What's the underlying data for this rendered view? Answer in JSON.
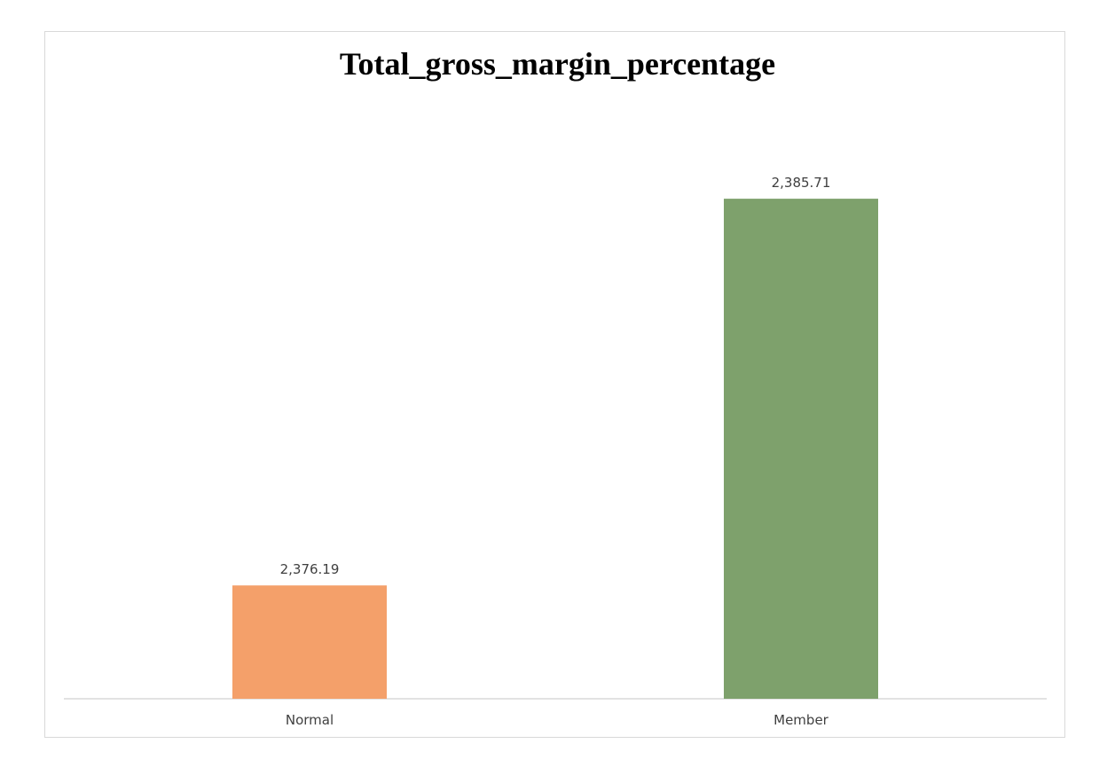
{
  "chart_data": {
    "type": "bar",
    "title": "Total_gross_margin_percentage",
    "categories": [
      "Normal",
      "Member"
    ],
    "values": [
      2376.19,
      2385.71
    ],
    "value_labels": [
      "2,376.19",
      "2,385.71"
    ],
    "bar_colors": [
      "#f4a06a",
      "#7ea16c"
    ],
    "xlabel": "",
    "ylabel": "",
    "ylim": [
      2373.4,
      2387.0
    ],
    "grid": false,
    "legend": "none"
  }
}
